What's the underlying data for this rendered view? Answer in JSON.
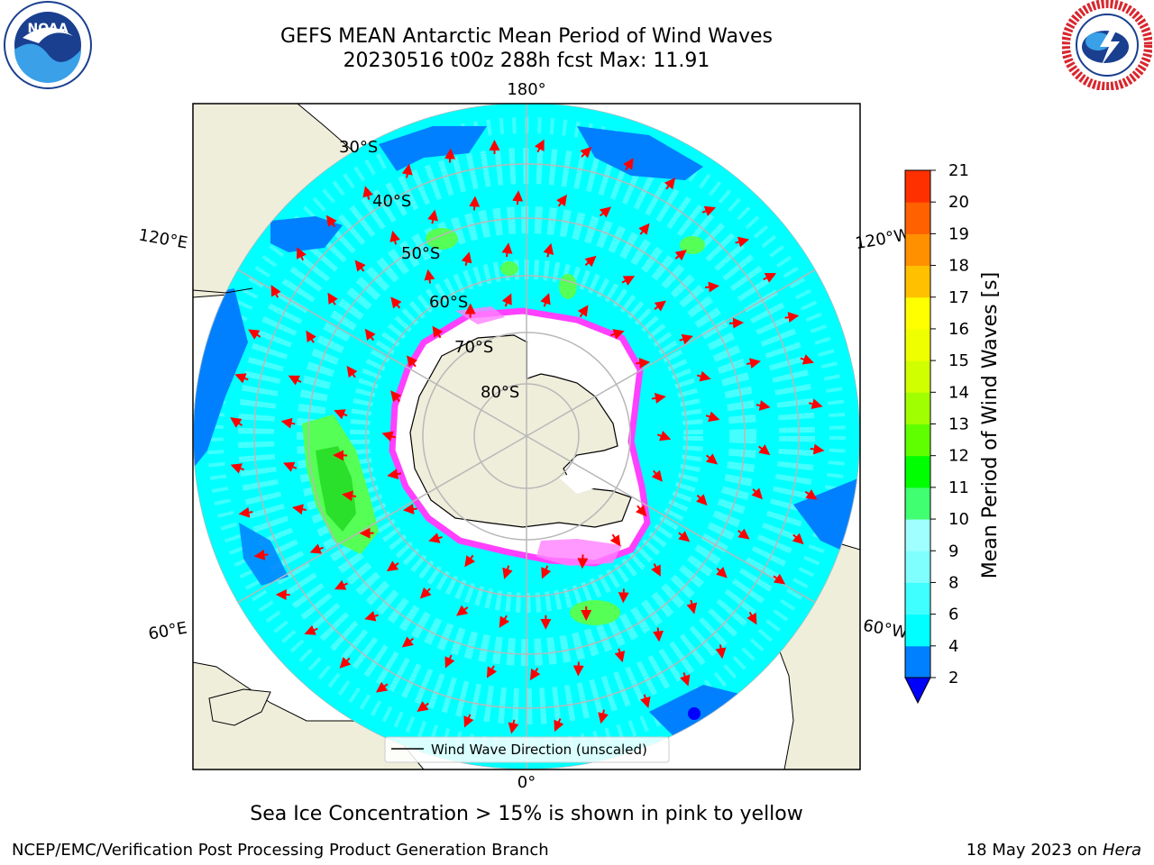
{
  "header": {
    "title_line1": "GEFS MEAN Antarctic Mean Period of Wind Waves",
    "title_line2": "20230516 t00z 288h fcst   Max: 11.91"
  },
  "logos": {
    "left": {
      "name": "noaa-logo",
      "text": "NOAA",
      "ring_text": "NATIONAL OCEANIC AND ATMOSPHERIC ADMINISTRATION · U.S. DEPARTMENT OF COMMERCE"
    },
    "right": {
      "name": "nws-logo",
      "ring_text": "NATIONAL WEATHER SERVICE"
    }
  },
  "map": {
    "projection": "south-polar-stereographic",
    "longitude_labels": [
      "180°",
      "120°E",
      "120°W",
      "60°E",
      "60°W",
      "0°"
    ],
    "latitude_labels": [
      "30°S",
      "40°S",
      "50°S",
      "60°S",
      "70°S",
      "80°S"
    ],
    "colors": {
      "land": "#efeedb",
      "ocean_cyan": "#00ffff",
      "ocean_light": "#4dffff",
      "ocean_blue": "#0080ff",
      "ocean_deep": "#0000ff",
      "ice_white": "#ffffff",
      "ice_edge": "#ff40ff",
      "green": "#55ff55",
      "arrow": "#ff0000",
      "grid": "#b8b8b8"
    },
    "legend_label": "Wind Wave Direction (unscaled)"
  },
  "colorbar": {
    "label": "Mean Period of Wind Waves [s]",
    "ticks": [
      "2",
      "4",
      "6",
      "8",
      "9",
      "10",
      "11",
      "12",
      "13",
      "14",
      "15",
      "16",
      "17",
      "18",
      "19",
      "20",
      "21"
    ],
    "colors": [
      "#0080ff",
      "#00ffff",
      "#40ffff",
      "#80ffff",
      "#a0ffff",
      "#40ff70",
      "#00ff00",
      "#60ff00",
      "#a0ff00",
      "#d0ff00",
      "#f0ff00",
      "#ffff00",
      "#ffc000",
      "#ff9000",
      "#ff6000",
      "#ff3000",
      "#ff0000"
    ],
    "under_color": "#0000ff"
  },
  "footer": {
    "caption": "Sea Ice Concentration > 15% is shown in pink to yellow",
    "credit": "NCEP/EMC/Verification Post Processing Product Generation Branch",
    "date": "18 May 2023 on ",
    "machine": "Hera"
  }
}
